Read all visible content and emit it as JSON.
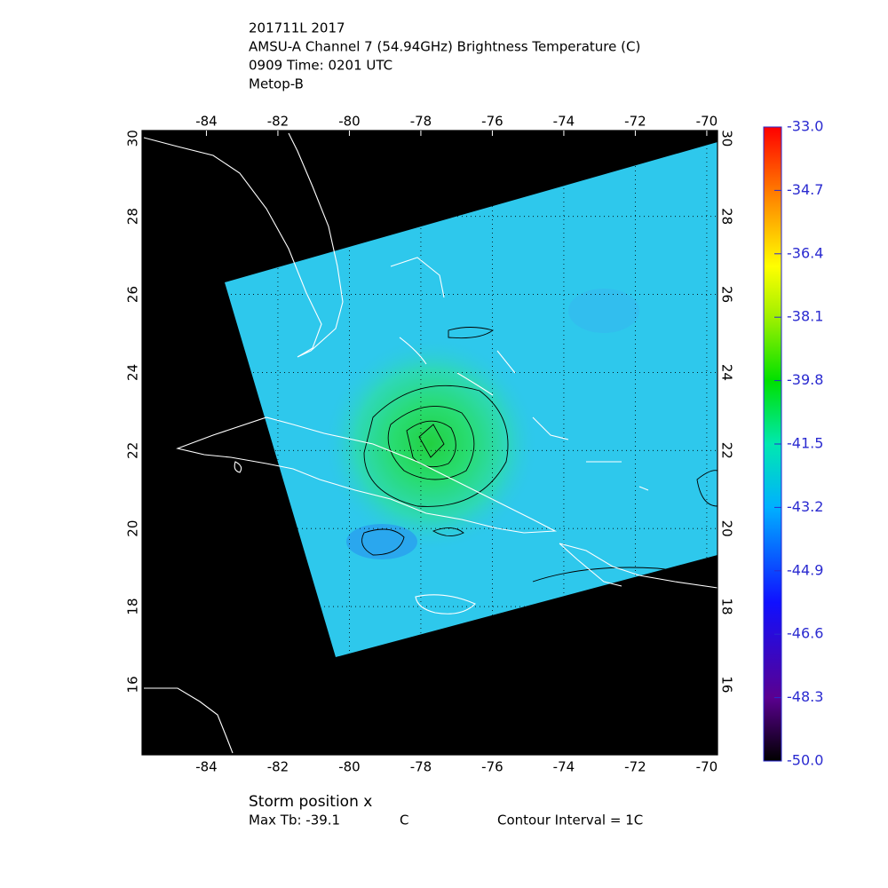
{
  "header": {
    "lines": [
      "201711L 2017",
      "AMSU-A Channel 7 (54.94GHz) Brightness Temperature (C)",
      "0909 Time: 0201 UTC",
      "Metop-B"
    ]
  },
  "map": {
    "lonlim": [
      -85.8,
      -69.7
    ],
    "latlim": [
      14.2,
      30.2
    ],
    "lonticks": [
      -84,
      -82,
      -80,
      -78,
      -76,
      -74,
      -72,
      -70
    ],
    "latticks": [
      16,
      18,
      20,
      22,
      24,
      26,
      28,
      30
    ]
  },
  "colorbar": {
    "lim": [
      -50,
      -33
    ],
    "ticks": [
      {
        "value": -33,
        "label": "-33.0"
      },
      {
        "value": -34.7,
        "label": "-34.7"
      },
      {
        "value": -36.4,
        "label": "-36.4"
      },
      {
        "value": -38.1,
        "label": "-38.1"
      },
      {
        "value": -39.8,
        "label": "-39.8"
      },
      {
        "value": -41.5,
        "label": "-41.5"
      },
      {
        "value": -43.2,
        "label": "-43.2"
      },
      {
        "value": -44.9,
        "label": "-44.9"
      },
      {
        "value": -46.6,
        "label": "-46.6"
      },
      {
        "value": -48.3,
        "label": "-48.3"
      },
      {
        "value": -50,
        "label": "-50.0"
      }
    ]
  },
  "footer": {
    "storm": "Storm position x",
    "max_tb": "Max Tb: -39.1",
    "max_tb_unit": "C",
    "contour": "Contour Interval = 1C"
  }
}
